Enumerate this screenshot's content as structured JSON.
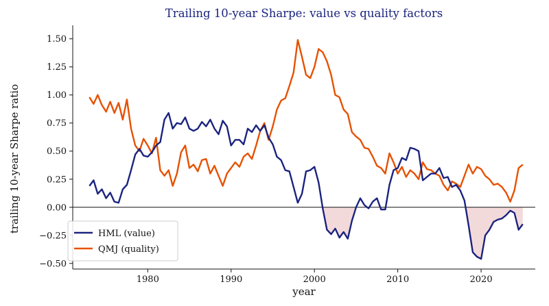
{
  "colors": {
    "hml": "#1a237e",
    "qmj": "#e65100",
    "shade": "#f3dada",
    "title": "#1a237e",
    "zero_line": "#111111"
  },
  "chart_data": {
    "type": "line",
    "title": "Trailing 10-year Sharpe: value vs quality factors",
    "xlabel": "year",
    "ylabel": "trailing 10-year Sharpe ratio",
    "xlim": [
      1971.0,
      2026.5
    ],
    "ylim": [
      -0.55,
      1.62
    ],
    "xticks": [
      1980,
      1990,
      2000,
      2010,
      2020
    ],
    "xtick_labels": [
      "1980",
      "1990",
      "2000",
      "2010",
      "2020"
    ],
    "yticks": [
      -0.5,
      -0.25,
      0.0,
      0.25,
      0.5,
      0.75,
      1.0,
      1.25,
      1.5
    ],
    "ytick_labels": [
      "−0.50",
      "−0.25",
      "0.00",
      "0.25",
      "0.50",
      "0.75",
      "1.00",
      "1.25",
      "1.50"
    ],
    "zero_line": 0,
    "shade_negative": "HML (value)",
    "grid": false,
    "legend_position": "lower-left",
    "x": [
      1973.0,
      1973.5,
      1974.0,
      1974.5,
      1975.0,
      1975.5,
      1976.0,
      1976.5,
      1977.0,
      1977.5,
      1978.0,
      1978.5,
      1979.0,
      1979.5,
      1980.0,
      1980.5,
      1981.0,
      1981.5,
      1982.0,
      1982.5,
      1983.0,
      1983.5,
      1984.0,
      1984.5,
      1985.0,
      1985.5,
      1986.0,
      1986.5,
      1987.0,
      1987.5,
      1988.0,
      1988.5,
      1989.0,
      1989.5,
      1990.0,
      1990.5,
      1991.0,
      1991.5,
      1992.0,
      1992.5,
      1993.0,
      1993.5,
      1994.0,
      1994.5,
      1995.0,
      1995.5,
      1996.0,
      1996.5,
      1997.0,
      1997.5,
      1998.0,
      1998.5,
      1999.0,
      1999.5,
      2000.0,
      2000.5,
      2001.0,
      2001.5,
      2002.0,
      2002.5,
      2003.0,
      2003.5,
      2004.0,
      2004.5,
      2005.0,
      2005.5,
      2006.0,
      2006.5,
      2007.0,
      2007.5,
      2008.0,
      2008.5,
      2009.0,
      2009.5,
      2010.0,
      2010.5,
      2011.0,
      2011.5,
      2012.0,
      2012.5,
      2013.0,
      2013.5,
      2014.0,
      2014.5,
      2015.0,
      2015.5,
      2016.0,
      2016.5,
      2017.0,
      2017.5,
      2018.0,
      2018.5,
      2019.0,
      2019.5,
      2020.0,
      2020.5,
      2021.0,
      2021.5,
      2022.0,
      2022.5,
      2023.0,
      2023.5,
      2024.0,
      2024.5,
      2025.0
    ],
    "series": [
      {
        "name": "HML (value)",
        "values": [
          0.19,
          0.24,
          0.12,
          0.16,
          0.08,
          0.13,
          0.05,
          0.04,
          0.16,
          0.2,
          0.33,
          0.47,
          0.52,
          0.46,
          0.45,
          0.49,
          0.55,
          0.58,
          0.78,
          0.84,
          0.7,
          0.75,
          0.74,
          0.8,
          0.7,
          0.68,
          0.7,
          0.76,
          0.72,
          0.78,
          0.7,
          0.65,
          0.77,
          0.72,
          0.55,
          0.6,
          0.6,
          0.56,
          0.7,
          0.67,
          0.73,
          0.68,
          0.73,
          0.62,
          0.56,
          0.45,
          0.42,
          0.33,
          0.32,
          0.18,
          0.04,
          0.12,
          0.32,
          0.33,
          0.36,
          0.22,
          -0.01,
          -0.2,
          -0.24,
          -0.19,
          -0.27,
          -0.22,
          -0.28,
          -0.12,
          0.0,
          0.08,
          0.02,
          -0.01,
          0.05,
          0.08,
          -0.02,
          -0.02,
          0.2,
          0.33,
          0.35,
          0.44,
          0.42,
          0.53,
          0.52,
          0.5,
          0.24,
          0.27,
          0.3,
          0.3,
          0.35,
          0.26,
          0.27,
          0.18,
          0.2,
          0.15,
          0.06,
          -0.16,
          -0.4,
          -0.44,
          -0.46,
          -0.25,
          -0.2,
          -0.13,
          -0.11,
          -0.1,
          -0.07,
          -0.03,
          -0.05,
          -0.2,
          -0.15
        ]
      },
      {
        "name": "QMJ (quality)",
        "values": [
          0.98,
          0.92,
          1.0,
          0.91,
          0.85,
          0.94,
          0.84,
          0.93,
          0.78,
          0.96,
          0.7,
          0.55,
          0.5,
          0.61,
          0.55,
          0.48,
          0.62,
          0.33,
          0.28,
          0.33,
          0.19,
          0.3,
          0.49,
          0.55,
          0.35,
          0.38,
          0.32,
          0.42,
          0.43,
          0.3,
          0.37,
          0.28,
          0.19,
          0.3,
          0.35,
          0.4,
          0.36,
          0.45,
          0.48,
          0.43,
          0.55,
          0.68,
          0.75,
          0.6,
          0.72,
          0.87,
          0.95,
          0.97,
          1.08,
          1.2,
          1.49,
          1.34,
          1.18,
          1.15,
          1.25,
          1.41,
          1.38,
          1.3,
          1.18,
          1.0,
          0.98,
          0.87,
          0.83,
          0.67,
          0.63,
          0.6,
          0.53,
          0.52,
          0.45,
          0.37,
          0.35,
          0.3,
          0.48,
          0.4,
          0.3,
          0.36,
          0.27,
          0.33,
          0.3,
          0.25,
          0.4,
          0.34,
          0.33,
          0.3,
          0.28,
          0.2,
          0.15,
          0.23,
          0.21,
          0.18,
          0.28,
          0.38,
          0.3,
          0.36,
          0.34,
          0.28,
          0.25,
          0.2,
          0.21,
          0.18,
          0.13,
          0.05,
          0.15,
          0.35,
          0.38
        ]
      }
    ]
  }
}
